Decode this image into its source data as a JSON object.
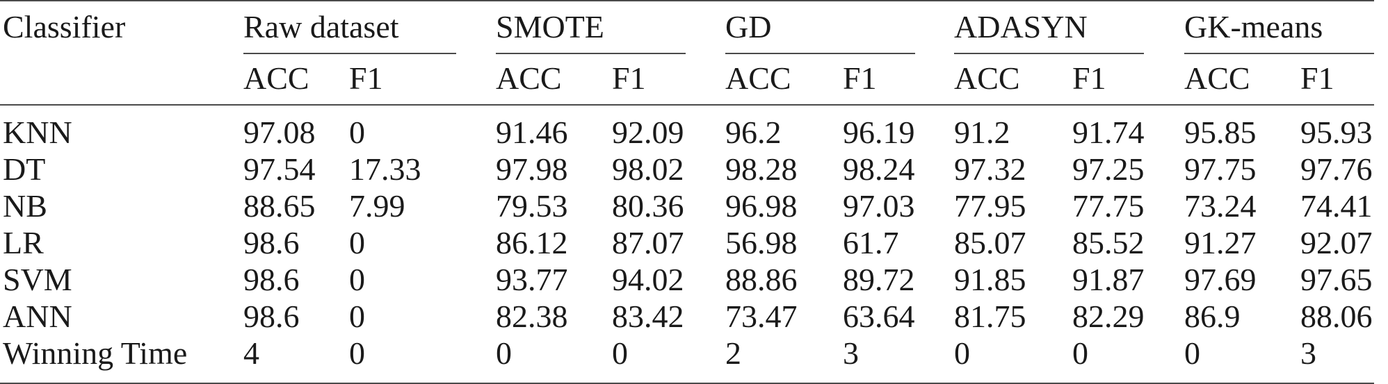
{
  "table": {
    "header": {
      "classifier": "Classifier",
      "groups": [
        "Raw dataset",
        "SMOTE",
        "GD",
        "ADASYN",
        "GK-means"
      ],
      "subheaders": [
        "ACC",
        "F1"
      ]
    },
    "rows": [
      {
        "label": "KNN",
        "values": [
          "97.08",
          "0",
          "91.46",
          "92.09",
          "96.2",
          "96.19",
          "91.2",
          "91.74",
          "95.85",
          "95.93"
        ]
      },
      {
        "label": "DT",
        "values": [
          "97.54",
          "17.33",
          "97.98",
          "98.02",
          "98.28",
          "98.24",
          "97.32",
          "97.25",
          "97.75",
          "97.76"
        ]
      },
      {
        "label": "NB",
        "values": [
          "88.65",
          "7.99",
          "79.53",
          "80.36",
          "96.98",
          "97.03",
          "77.95",
          "77.75",
          "73.24",
          "74.41"
        ]
      },
      {
        "label": "LR",
        "values": [
          "98.6",
          "0",
          "86.12",
          "87.07",
          "56.98",
          "61.7",
          "85.07",
          "85.52",
          "91.27",
          "92.07"
        ]
      },
      {
        "label": "SVM",
        "values": [
          "98.6",
          "0",
          "93.77",
          "94.02",
          "88.86",
          "89.72",
          "91.85",
          "91.87",
          "97.69",
          "97.65"
        ]
      },
      {
        "label": "ANN",
        "values": [
          "98.6",
          "0",
          "82.38",
          "83.42",
          "73.47",
          "63.64",
          "81.75",
          "82.29",
          "86.9",
          "88.06"
        ]
      },
      {
        "label": "Winning Time",
        "values": [
          "4",
          "0",
          "0",
          "0",
          "2",
          "3",
          "0",
          "0",
          "0",
          "3"
        ]
      }
    ]
  }
}
